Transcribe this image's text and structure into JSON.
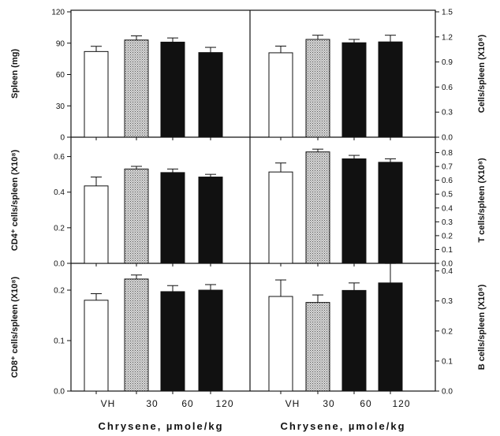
{
  "x_label": "Chrysene, µmole/kg",
  "categories": [
    "VH",
    "30",
    "60",
    "120"
  ],
  "colors": {
    "bar_fill": [
      "#ffffff",
      "#bdbdbd",
      "#111111",
      "#111111"
    ],
    "stroke": "#111111"
  },
  "chart_data": [
    {
      "type": "bar",
      "panel": "top-left",
      "ylabel": "Spleen (mg)",
      "axis_side": "left",
      "categories": [
        "VH",
        "30",
        "60",
        "120"
      ],
      "values": [
        82,
        93,
        91,
        81
      ],
      "errors": [
        5,
        4,
        4,
        5
      ],
      "ylim": [
        0,
        120
      ],
      "yticks": [
        "0",
        "30",
        "60",
        "90",
        "120"
      ],
      "grid": false
    },
    {
      "type": "bar",
      "panel": "top-right",
      "ylabel": "Cells/spleen (X10⁸)",
      "axis_side": "right",
      "categories": [
        "VH",
        "30",
        "60",
        "120"
      ],
      "values": [
        1.01,
        1.17,
        1.13,
        1.14
      ],
      "errors": [
        0.08,
        0.05,
        0.04,
        0.08
      ],
      "ylim": [
        0,
        1.5
      ],
      "yticks": [
        "0.0",
        "0.3",
        "0.6",
        "0.9",
        "1.2",
        "1.5"
      ],
      "grid": false
    },
    {
      "type": "bar",
      "panel": "middle-left",
      "ylabel": "CD4⁺ cells/spleen (X10⁸)",
      "axis_side": "left",
      "categories": [
        "VH",
        "30",
        "60",
        "120"
      ],
      "values": [
        0.435,
        0.53,
        0.51,
        0.485
      ],
      "errors": [
        0.05,
        0.015,
        0.02,
        0.015
      ],
      "ylim": [
        0,
        0.7
      ],
      "yticks": [
        "0.0",
        "0.2",
        "0.4",
        "0.6"
      ],
      "grid": false
    },
    {
      "type": "bar",
      "panel": "middle-right",
      "ylabel": "T cells/spleen (X10⁸)",
      "axis_side": "right",
      "categories": [
        "VH",
        "30",
        "60",
        "120"
      ],
      "values": [
        0.66,
        0.805,
        0.755,
        0.73
      ],
      "errors": [
        0.065,
        0.02,
        0.025,
        0.025
      ],
      "ylim": [
        0,
        0.9
      ],
      "yticks": [
        "0.0",
        "0.1",
        "0.2",
        "0.3",
        "0.4",
        "0.5",
        "0.6",
        "0.7",
        "0.8"
      ],
      "grid": false
    },
    {
      "type": "bar",
      "panel": "bottom-left",
      "ylabel": "CD8⁺ cells/spleen (X10⁸)",
      "axis_side": "left",
      "categories": [
        "VH",
        "30",
        "60",
        "120"
      ],
      "values": [
        0.18,
        0.222,
        0.197,
        0.2
      ],
      "errors": [
        0.013,
        0.008,
        0.012,
        0.011
      ],
      "ylim": [
        0,
        0.25
      ],
      "yticks": [
        "0.0",
        "0.1",
        "0.2"
      ],
      "grid": false
    },
    {
      "type": "bar",
      "panel": "bottom-right",
      "ylabel": "B cells/spleen (X10⁸)",
      "axis_side": "right",
      "categories": [
        "VH",
        "30",
        "60",
        "120"
      ],
      "values": [
        0.315,
        0.295,
        0.335,
        0.36
      ],
      "errors": [
        0.055,
        0.025,
        0.025,
        0.065
      ],
      "ylim": [
        0,
        0.42
      ],
      "yticks": [
        "0.0",
        "0.1",
        "0.2",
        "0.3",
        "0.4"
      ],
      "grid": false
    }
  ]
}
